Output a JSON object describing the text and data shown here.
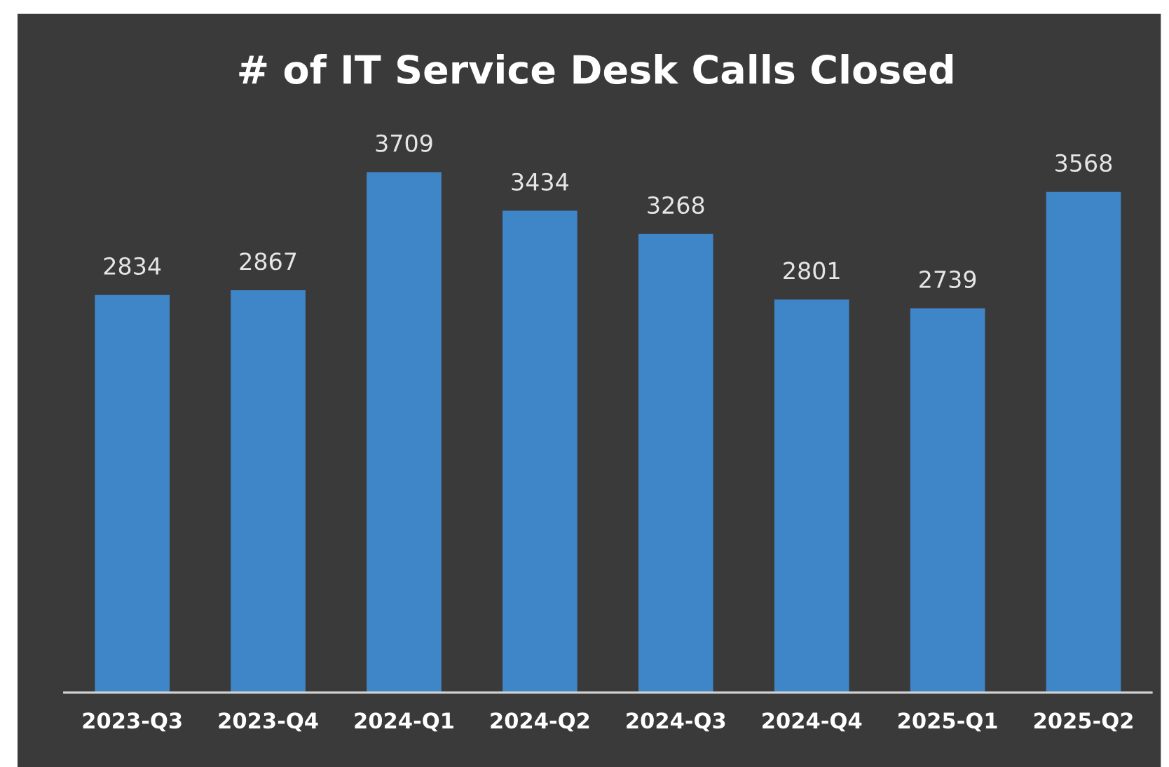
{
  "chart_data": {
    "type": "bar",
    "title": "# of IT Service Desk Calls Closed",
    "categories": [
      "2023-Q3",
      "2023-Q4",
      "2024-Q1",
      "2024-Q2",
      "2024-Q3",
      "2024-Q4",
      "2025-Q1",
      "2025-Q2"
    ],
    "values": [
      2834,
      2867,
      3709,
      3434,
      3268,
      2801,
      2739,
      3568
    ],
    "color": "#3f86c8",
    "data_labels": true
  }
}
